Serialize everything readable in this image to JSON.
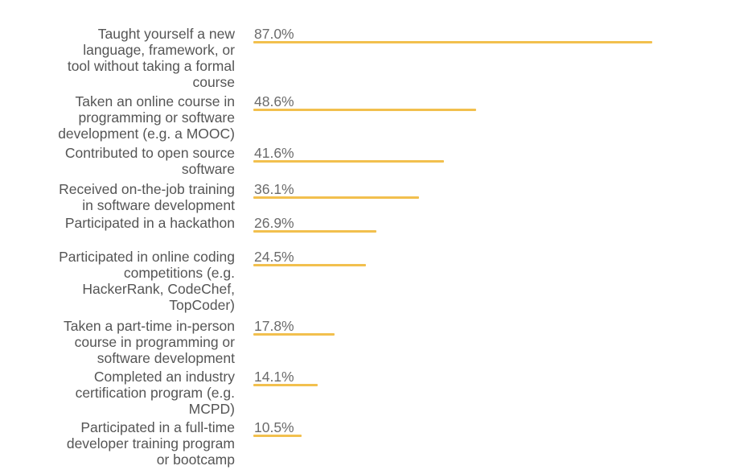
{
  "chart_data": {
    "type": "bar",
    "orientation": "horizontal",
    "categories": [
      "Taught yourself a new language, framework, or tool without taking a formal course",
      "Taken an online course in programming or software development (e.g. a MOOC)",
      "Contributed to open source software",
      "Received on-the-job training in software development",
      "Participated in a hackathon",
      "Participated in online coding competitions (e.g. HackerRank, CodeChef, TopCoder)",
      "Taken a part-time in-person course in programming or software development",
      "Completed an industry certification program (e.g. MCPD)",
      "Participated in a full-time developer training program or bootcamp"
    ],
    "values": [
      87.0,
      48.6,
      41.6,
      36.1,
      26.9,
      24.5,
      17.8,
      14.1,
      10.5
    ],
    "value_labels": [
      "87.0%",
      "48.6%",
      "41.6%",
      "36.1%",
      "26.9%",
      "24.5%",
      "17.8%",
      "14.1%",
      "10.5%"
    ],
    "category_lines": [
      [
        "Taught yourself a new",
        "language, framework, or",
        "tool without taking a formal",
        "course"
      ],
      [
        "Taken an online course in",
        "programming or software",
        "development (e.g. a MOOC)"
      ],
      [
        "Contributed to open source",
        "software"
      ],
      [
        "Received on-the-job training",
        "in software development"
      ],
      [
        "Participated in a hackathon"
      ],
      [
        "Participated in online coding",
        "competitions (e.g.",
        "HackerRank, CodeChef,",
        "TopCoder)"
      ],
      [
        "Taken a part-time in-person",
        "course in programming or",
        "software development"
      ],
      [
        "Completed an industry",
        "certification program (e.g.",
        "MCPD)"
      ],
      [
        "Participated in a full-time",
        "developer training program",
        "or bootcamp"
      ]
    ],
    "bar_color": "#f2c04e",
    "xlim": [
      0,
      100
    ],
    "grid": false,
    "title": "",
    "xlabel": "",
    "ylabel": ""
  }
}
